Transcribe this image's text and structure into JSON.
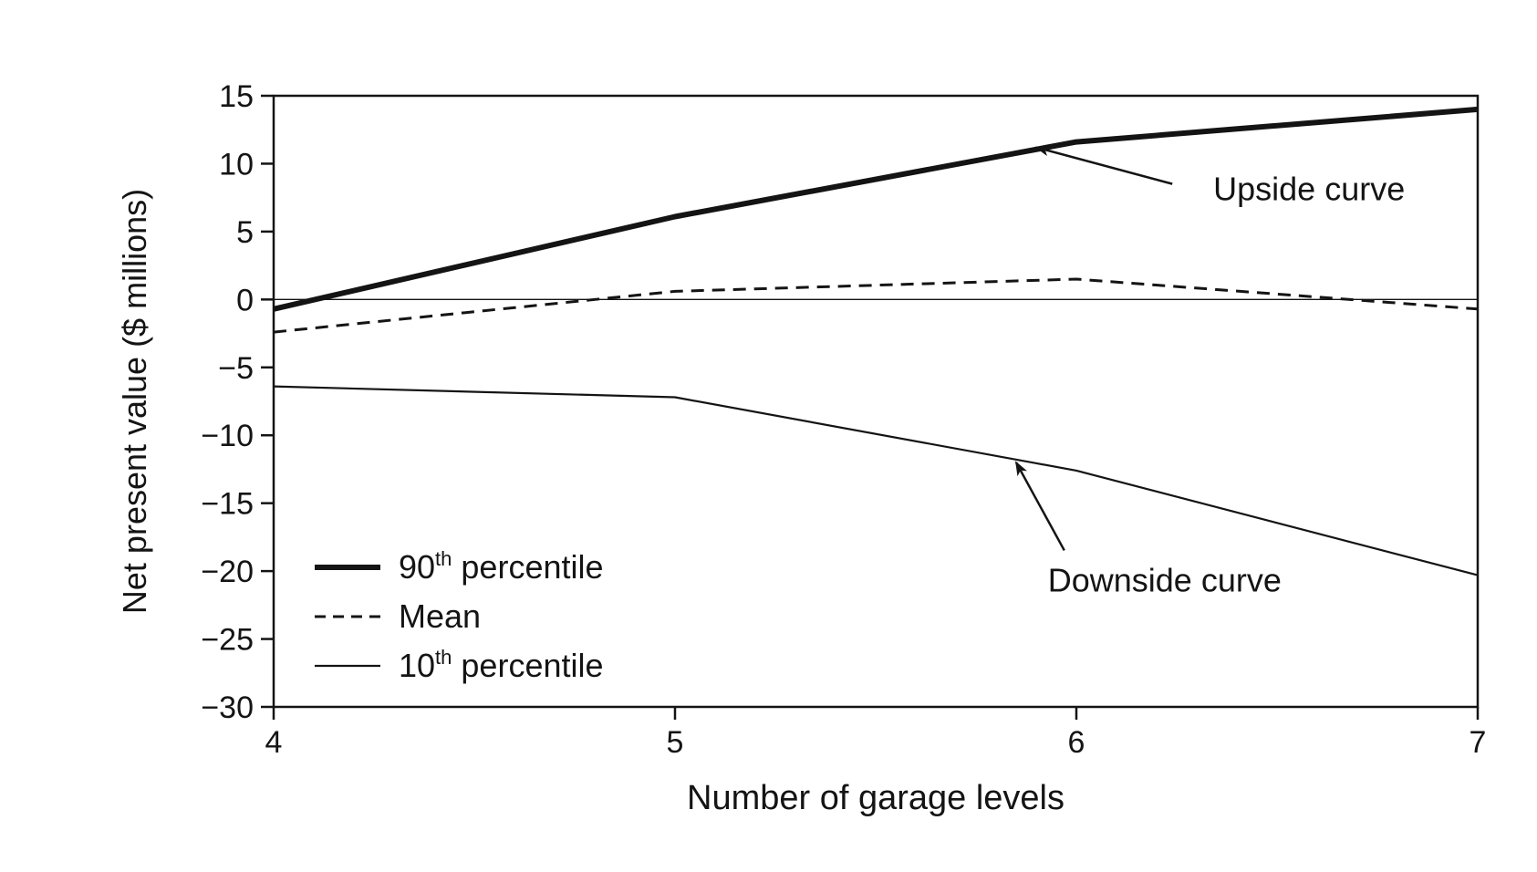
{
  "chart_data": {
    "type": "line",
    "title": "",
    "xlabel": "Number of garage levels",
    "ylabel": "Net present value ($ millions)",
    "x": [
      4,
      5,
      6,
      7
    ],
    "xlim": [
      4,
      7
    ],
    "ylim": [
      -30,
      15
    ],
    "xticks": [
      4,
      5,
      6,
      7
    ],
    "yticks": [
      15,
      10,
      5,
      0,
      -5,
      -10,
      -15,
      -20,
      -25,
      -30
    ],
    "grid": false,
    "legend_position": "bottom-left",
    "series": [
      {
        "name": "90th percentile",
        "name_base": "90",
        "name_sup": "th",
        "name_rest": " percentile",
        "style": "thick-solid",
        "values": [
          -0.7,
          6.1,
          11.6,
          14.0
        ]
      },
      {
        "name": "Mean",
        "name_base": "Mean",
        "name_sup": "",
        "name_rest": "",
        "style": "dashed",
        "values": [
          -2.4,
          0.6,
          1.5,
          -0.7
        ]
      },
      {
        "name": "10th percentile",
        "name_base": "10",
        "name_sup": "th",
        "name_rest": " percentile",
        "style": "thin-solid",
        "values": [
          -6.4,
          -7.2,
          -12.6,
          -20.3
        ]
      }
    ],
    "reference_line": {
      "y": 0,
      "style": "thin-solid"
    },
    "annotations": [
      {
        "text": "Upside curve",
        "target_x": 5.9,
        "target_y": 11.2,
        "text_x": 6.58,
        "text_y": 7.3
      },
      {
        "text": "Downside curve",
        "target_x": 5.85,
        "target_y": -12.0,
        "text_x": 6.22,
        "text_y": -21.5
      }
    ]
  },
  "colors": {
    "ink": "#141414",
    "background": "#ffffff"
  }
}
